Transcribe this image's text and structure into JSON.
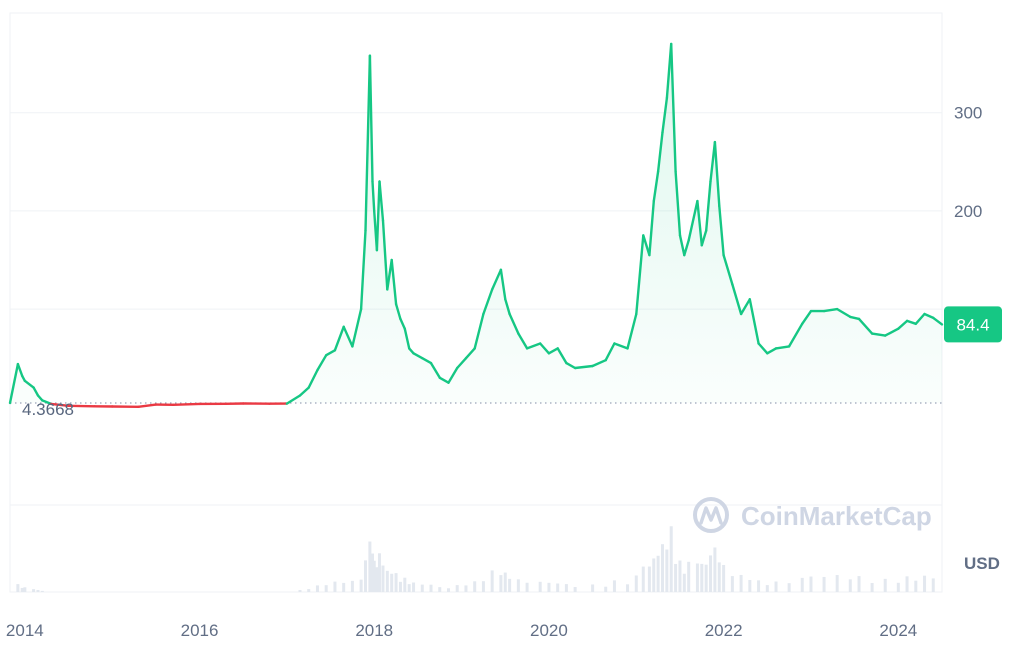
{
  "chart_data": {
    "type": "line",
    "title": "",
    "xlabel": "",
    "ylabel": "",
    "currency": "USD",
    "watermark": "CoinMarketCap",
    "current_price": "84.4",
    "baseline_value": "4.3668",
    "ylim": [
      4.3668,
      390
    ],
    "y_ticks": [
      {
        "value": 100,
        "label": ""
      },
      {
        "value": 200,
        "label": "200"
      },
      {
        "value": 300,
        "label": "300"
      }
    ],
    "x_ticks": [
      "2014",
      "2016",
      "2018",
      "2020",
      "2022",
      "2024"
    ],
    "xlim": [
      2013.83,
      2024.5
    ],
    "colors": {
      "up": "#16c784",
      "down": "#ea3943",
      "grid": "#eff2f5",
      "axis_text": "#616e85"
    },
    "series": [
      {
        "x": [
          2013.83,
          2013.92,
          2013.97,
          2014.0,
          2014.1,
          2014.15,
          2014.2,
          2014.3,
          2014.5,
          2014.8,
          2015.0,
          2015.3,
          2015.5,
          2015.7,
          2016.0,
          2016.3,
          2016.5,
          2016.8,
          2017.0,
          2017.15,
          2017.25,
          2017.35,
          2017.45,
          2017.55,
          2017.65,
          2017.75,
          2017.85,
          2017.9,
          2017.95,
          2017.98,
          2018.0,
          2018.03,
          2018.06,
          2018.1,
          2018.15,
          2018.2,
          2018.25,
          2018.3,
          2018.35,
          2018.4,
          2018.45,
          2018.55,
          2018.65,
          2018.75,
          2018.85,
          2018.95,
          2019.05,
          2019.15,
          2019.25,
          2019.35,
          2019.45,
          2019.5,
          2019.55,
          2019.65,
          2019.75,
          2019.9,
          2020.0,
          2020.1,
          2020.2,
          2020.3,
          2020.5,
          2020.65,
          2020.75,
          2020.9,
          2021.0,
          2021.08,
          2021.15,
          2021.2,
          2021.25,
          2021.3,
          2021.35,
          2021.4,
          2021.45,
          2021.5,
          2021.55,
          2021.6,
          2021.7,
          2021.75,
          2021.8,
          2021.85,
          2021.9,
          2021.95,
          2022.0,
          2022.1,
          2022.2,
          2022.3,
          2022.4,
          2022.5,
          2022.6,
          2022.75,
          2022.9,
          2023.0,
          2023.15,
          2023.3,
          2023.45,
          2023.55,
          2023.7,
          2023.85,
          2024.0,
          2024.1,
          2024.2,
          2024.3,
          2024.4,
          2024.5
        ],
        "values": [
          4.37,
          44,
          32,
          27,
          20,
          12,
          7,
          3.5,
          1.5,
          1.0,
          0.8,
          0.5,
          2.7,
          2.5,
          3.4,
          3.6,
          3.9,
          3.7,
          3.8,
          12,
          20,
          38,
          53,
          58,
          82,
          62,
          100,
          180,
          358,
          230,
          200,
          160,
          230,
          190,
          120,
          150,
          105,
          90,
          80,
          60,
          55,
          50,
          45,
          30,
          25,
          40,
          50,
          60,
          95,
          120,
          140,
          110,
          95,
          75,
          60,
          65,
          55,
          60,
          45,
          40,
          42,
          48,
          65,
          60,
          95,
          175,
          155,
          210,
          240,
          280,
          315,
          370,
          240,
          175,
          155,
          170,
          210,
          165,
          180,
          230,
          270,
          205,
          155,
          125,
          95,
          110,
          65,
          55,
          60,
          62,
          85,
          98,
          98,
          100,
          92,
          90,
          75,
          73,
          80,
          88,
          85,
          95,
          91,
          84.4
        ]
      }
    ]
  }
}
